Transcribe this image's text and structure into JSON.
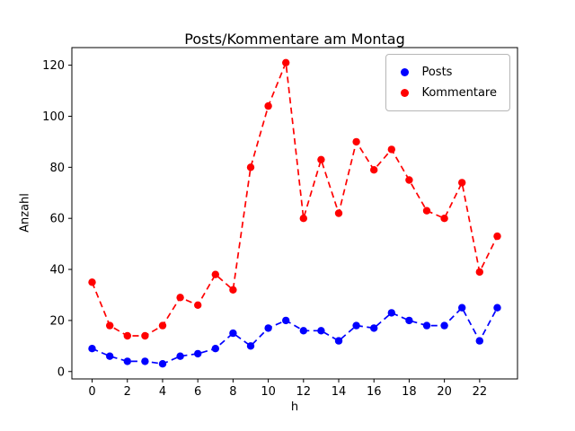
{
  "window": {
    "background": "#ffffff"
  },
  "chart_data": {
    "type": "line",
    "title": "Posts/Kommentare am Montag",
    "xlabel": "h",
    "ylabel": "Anzahl",
    "x": [
      0,
      1,
      2,
      3,
      4,
      5,
      6,
      7,
      8,
      9,
      10,
      11,
      12,
      13,
      14,
      15,
      16,
      17,
      18,
      19,
      20,
      21,
      22,
      23
    ],
    "series": [
      {
        "name": "Posts",
        "color": "#0000ff",
        "linestyle": "dashed",
        "marker": "circle",
        "values": [
          9,
          6,
          4,
          4,
          3,
          6,
          7,
          9,
          15,
          10,
          17,
          20,
          16,
          16,
          12,
          18,
          17,
          23,
          20,
          18,
          18,
          25,
          12,
          25
        ]
      },
      {
        "name": "Kommentare",
        "color": "#ff0000",
        "linestyle": "dashed",
        "marker": "circle",
        "values": [
          35,
          18,
          14,
          14,
          18,
          29,
          26,
          38,
          32,
          80,
          104,
          121,
          60,
          83,
          62,
          90,
          79,
          87,
          75,
          63,
          60,
          74,
          39,
          53
        ]
      }
    ],
    "x_ticks": [
      0,
      2,
      4,
      6,
      8,
      10,
      12,
      14,
      16,
      18,
      20,
      22
    ],
    "y_ticks": [
      0,
      20,
      40,
      60,
      80,
      100,
      120
    ],
    "xlim": [
      -1.15,
      24.15
    ],
    "ylim": [
      -2.9,
      126.9
    ],
    "grid": false,
    "legend_position": "upper right"
  }
}
